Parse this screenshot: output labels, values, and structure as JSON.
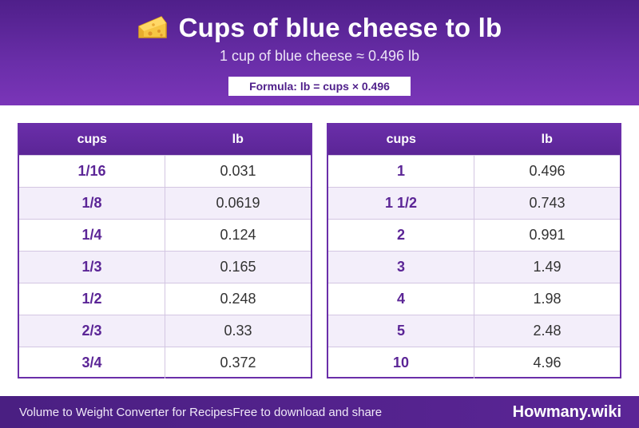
{
  "header": {
    "title": "Cups of blue cheese to lb",
    "subtitle": "1 cup of blue cheese ≈ 0.496 lb",
    "formula": "Formula: lb = cups × 0.496",
    "icon": "cheese-icon"
  },
  "tables": [
    {
      "headers": [
        "cups",
        "lb"
      ],
      "rows": [
        [
          "1/16",
          "0.031"
        ],
        [
          "1/8",
          "0.0619"
        ],
        [
          "1/4",
          "0.124"
        ],
        [
          "1/3",
          "0.165"
        ],
        [
          "1/2",
          "0.248"
        ],
        [
          "2/3",
          "0.33"
        ],
        [
          "3/4",
          "0.372"
        ]
      ]
    },
    {
      "headers": [
        "cups",
        "lb"
      ],
      "rows": [
        [
          "1",
          "0.496"
        ],
        [
          "1 1/2",
          "0.743"
        ],
        [
          "2",
          "0.991"
        ],
        [
          "3",
          "1.49"
        ],
        [
          "4",
          "1.98"
        ],
        [
          "5",
          "2.48"
        ],
        [
          "10",
          "4.96"
        ]
      ]
    }
  ],
  "footer": {
    "left_text": "Volume to Weight Converter for Recipes",
    "left_text2": "Free to download and share",
    "brand": "Howmany.wiki"
  },
  "colors": {
    "primary": "#6a2ea9",
    "dark": "#4f1f8a",
    "row_alt": "#f3eefa"
  }
}
